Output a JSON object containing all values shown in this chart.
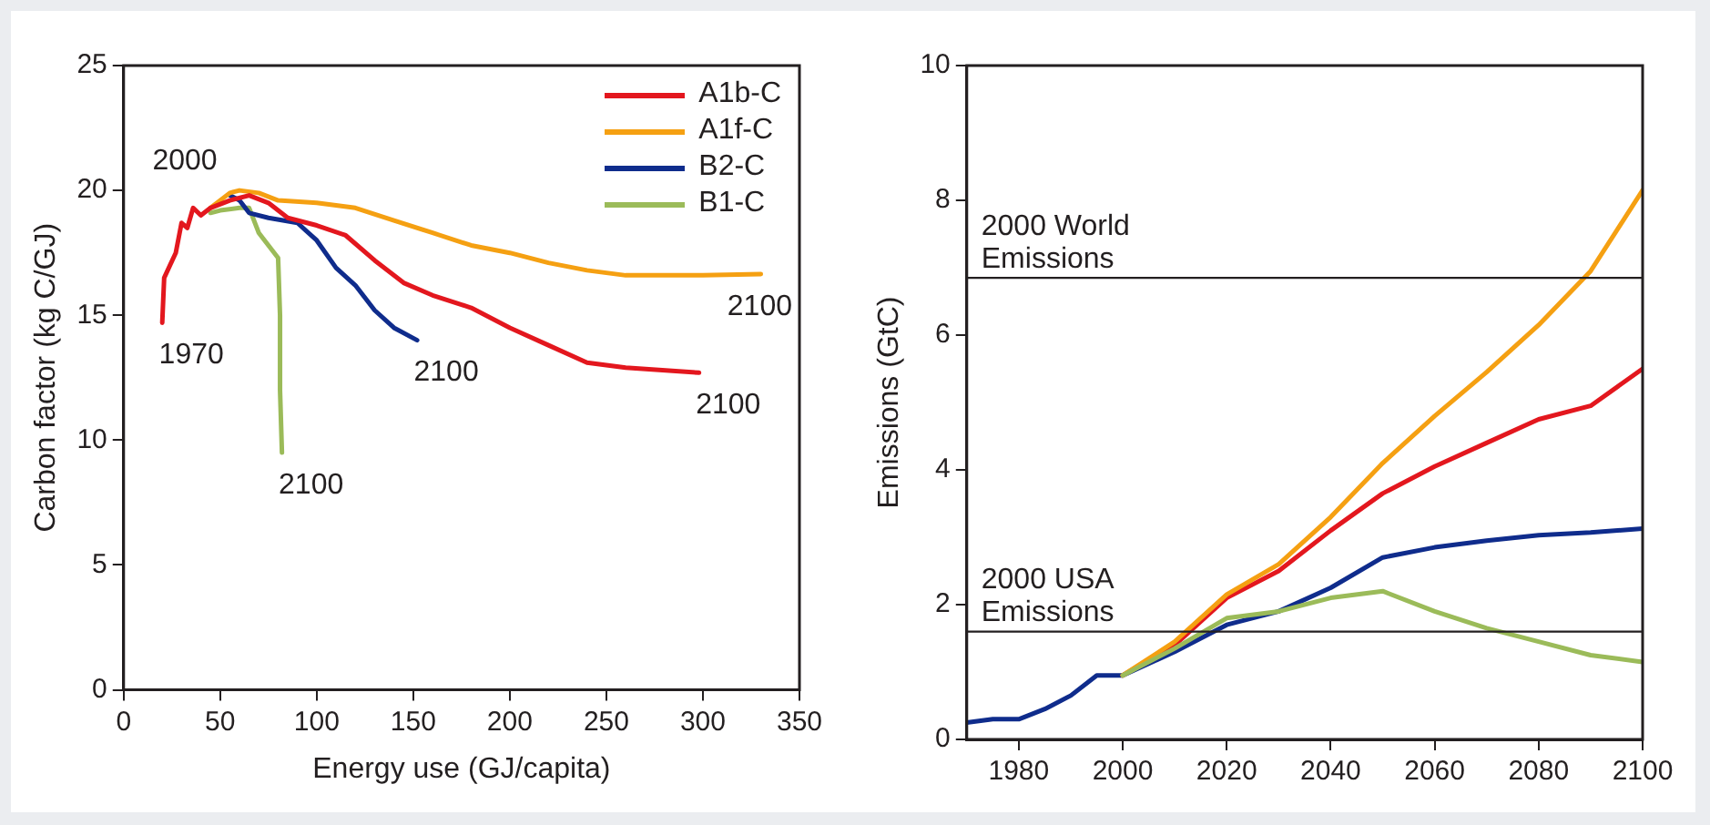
{
  "chart_data": [
    {
      "type": "line",
      "xlabel": "Energy use (GJ/capita)",
      "ylabel": "Carbon factor (kg C/GJ)",
      "xlim": [
        0,
        350
      ],
      "xticks": [
        0,
        50,
        100,
        150,
        200,
        250,
        300,
        350
      ],
      "ylim": [
        0,
        25
      ],
      "yticks": [
        0,
        5,
        10,
        15,
        20,
        25
      ],
      "grid": false,
      "legend": "top right",
      "marker": "none",
      "line_style": "solid",
      "series": [
        {
          "name": "A1b-C",
          "color": "#e3171e",
          "x": [
            20,
            21,
            24,
            27,
            30,
            33,
            36,
            40,
            45,
            55,
            65,
            75,
            85,
            100,
            115,
            130,
            145,
            160,
            180,
            200,
            220,
            240,
            260,
            298
          ],
          "values": [
            14.7,
            16.5,
            17,
            17.5,
            18.7,
            18.5,
            19.3,
            19,
            19.3,
            19.6,
            19.8,
            19.5,
            18.9,
            18.6,
            18.2,
            17.2,
            16.3,
            15.8,
            15.3,
            14.5,
            13.8,
            13.1,
            12.9,
            12.7
          ]
        },
        {
          "name": "A1f-C",
          "color": "#f5a012",
          "x": [
            45,
            55,
            60,
            70,
            80,
            100,
            120,
            140,
            160,
            180,
            200,
            220,
            240,
            260,
            280,
            300,
            330
          ],
          "values": [
            19.3,
            19.9,
            20,
            19.9,
            19.6,
            19.5,
            19.3,
            18.8,
            18.3,
            17.8,
            17.5,
            17.1,
            16.8,
            16.6,
            16.6,
            16.6,
            16.65
          ]
        },
        {
          "name": "B2-C",
          "color": "#0f2c8c",
          "x": [
            55,
            60,
            65,
            75,
            90,
            100,
            110,
            120,
            130,
            140,
            152
          ],
          "values": [
            19.8,
            19.6,
            19.1,
            18.9,
            18.7,
            18,
            16.9,
            16.2,
            15.2,
            14.5,
            14
          ]
        },
        {
          "name": "B1-C",
          "color": "#9bbb59",
          "x": [
            45,
            50,
            60,
            65,
            70,
            75,
            80,
            81,
            81,
            82
          ],
          "values": [
            19.1,
            19.2,
            19.3,
            19.3,
            18.3,
            17.8,
            17.3,
            15,
            12,
            9.5
          ]
        }
      ],
      "annotations": [
        {
          "text": "2000",
          "x": 60,
          "y": 20
        },
        {
          "text": "1970",
          "x": 20,
          "y": 14.7
        },
        {
          "text": "2100",
          "x": 152,
          "y": 14
        },
        {
          "text": "2100",
          "x": 298,
          "y": 12.7
        },
        {
          "text": "2100",
          "x": 330,
          "y": 16.65
        },
        {
          "text": "2100",
          "x": 82,
          "y": 9.5
        }
      ]
    },
    {
      "type": "line",
      "ylabel": "Emissions (GtC)",
      "xlim": [
        1970,
        2100
      ],
      "xticks": [
        1980,
        2000,
        2020,
        2040,
        2060,
        2080,
        2100
      ],
      "ylim": [
        0,
        10
      ],
      "yticks": [
        0,
        2,
        4,
        6,
        8,
        10
      ],
      "grid": false,
      "legend": false,
      "marker": "none",
      "line_style": "solid",
      "ref_lines": [
        {
          "axis": "y",
          "value": 6.85,
          "label": "2000 World Emissions",
          "color": "#231f20"
        },
        {
          "axis": "y",
          "value": 1.6,
          "label": "2000 USA Emissions",
          "color": "#231f20"
        }
      ],
      "series": [
        {
          "color": "#9bbb59",
          "x": [
            2000,
            2010,
            2020,
            2030,
            2040,
            2050,
            2060,
            2070,
            2080,
            2090,
            2100
          ],
          "values": [
            0.95,
            1.35,
            1.8,
            1.9,
            2.1,
            2.2,
            1.9,
            1.65,
            1.45,
            1.25,
            1.15
          ]
        },
        {
          "color": "#f5a012",
          "x": [
            2000,
            2010,
            2020,
            2030,
            2040,
            2050,
            2060,
            2070,
            2080,
            2090,
            2100
          ],
          "values": [
            0.95,
            1.45,
            2.15,
            2.6,
            3.3,
            4.1,
            4.8,
            5.45,
            6.15,
            6.95,
            8.15
          ]
        },
        {
          "color": "#e3171e",
          "x": [
            2000,
            2010,
            2020,
            2030,
            2040,
            2050,
            2060,
            2070,
            2080,
            2090,
            2100
          ],
          "values": [
            0.95,
            1.4,
            2.1,
            2.5,
            3.1,
            3.65,
            4.05,
            4.4,
            4.75,
            4.95,
            5.5
          ]
        },
        {
          "color": "#0f2c8c",
          "x": [
            1970,
            1975,
            1980,
            1985,
            1990,
            1995,
            2000,
            2010,
            2020,
            2030,
            2040,
            2050,
            2060,
            2070,
            2080,
            2090,
            2100
          ],
          "values": [
            0.25,
            0.3,
            0.3,
            0.45,
            0.65,
            0.95,
            0.95,
            1.3,
            1.7,
            1.9,
            2.25,
            2.7,
            2.85,
            2.95,
            3.03,
            3.07,
            3.13
          ]
        }
      ]
    }
  ]
}
